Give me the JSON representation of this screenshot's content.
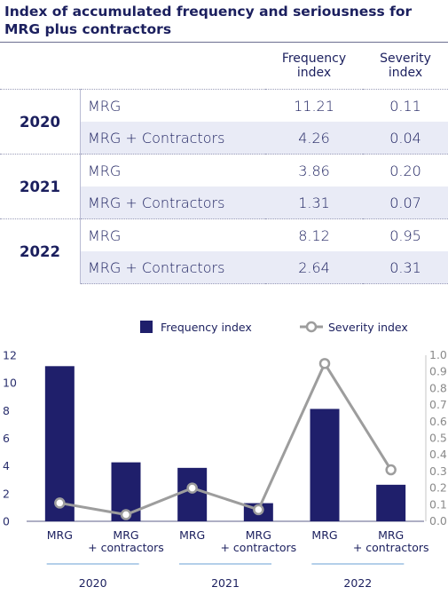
{
  "title": "Index of accumulated frequency and seriousness for MRG plus contractors",
  "table": {
    "header": {
      "frequency": "Frequency index",
      "severity": "Severity index"
    },
    "groups": [
      {
        "year": "2020",
        "rows": [
          {
            "label": "MRG",
            "frequency": "11.21",
            "severity": "0.11"
          },
          {
            "label": "MRG + Contractors",
            "frequency": "4.26",
            "severity": "0.04"
          }
        ]
      },
      {
        "year": "2021",
        "rows": [
          {
            "label": "MRG",
            "frequency": "3.86",
            "severity": "0.20"
          },
          {
            "label": "MRG + Contractors",
            "frequency": "1.31",
            "severity": "0.07"
          }
        ]
      },
      {
        "year": "2022",
        "rows": [
          {
            "label": "MRG",
            "frequency": "8.12",
            "severity": "0.95"
          },
          {
            "label": "MRG + Contractors",
            "frequency": "2.64",
            "severity": "0.31"
          }
        ]
      }
    ]
  },
  "chart_data": {
    "type": "bar",
    "categories": [
      "MRG",
      "MRG\n+ contractors",
      "MRG",
      "MRG\n+ contractors",
      "MRG",
      "MRG\n+ contractors"
    ],
    "groups": [
      "2020",
      "2021",
      "2022"
    ],
    "series": [
      {
        "name": "Frequency index",
        "type": "bar",
        "axis": "left",
        "color": "#1f1f6b",
        "values": [
          11.21,
          4.26,
          3.86,
          1.31,
          8.12,
          2.64
        ]
      },
      {
        "name": "Severity index",
        "type": "line",
        "axis": "right",
        "color": "#9d9d9d",
        "values": [
          0.11,
          0.04,
          0.2,
          0.07,
          0.95,
          0.31
        ]
      }
    ],
    "ylim": [
      0,
      12
    ],
    "y2lim": [
      0,
      1.0
    ],
    "yticks": [
      "0",
      "2",
      "4",
      "6",
      "8",
      "10",
      "12"
    ],
    "y2ticks": [
      "0.0",
      "0.1",
      "0.2",
      "0.3",
      "0.4",
      "0.5",
      "0.6",
      "0.7",
      "0.8",
      "0.9",
      "1.0"
    ],
    "legend_position": "top",
    "grid": false
  }
}
